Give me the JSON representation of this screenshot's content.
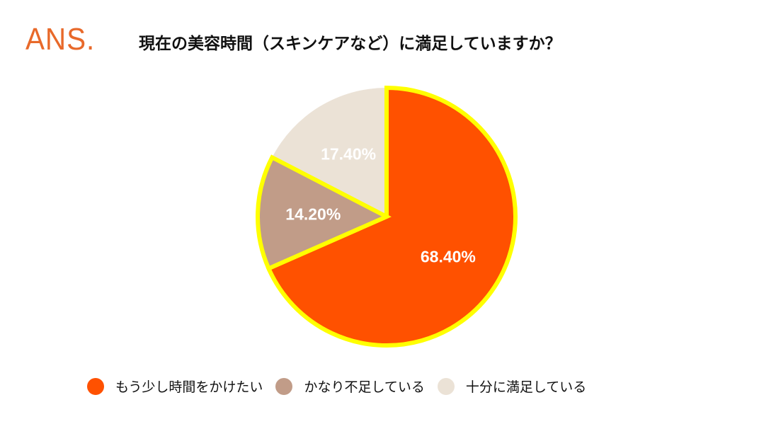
{
  "logo": {
    "text": "ANS."
  },
  "chart_data": {
    "type": "pie",
    "title": "現在の美容時間（スキンケアなど）に満足していますか？",
    "slices": [
      {
        "label": "もう少し時間をかけたい",
        "value": 68.4,
        "display": "68.40%",
        "color": "#ff5100",
        "highlighted": true
      },
      {
        "label": "かなり不足している",
        "value": 14.2,
        "display": "14.20%",
        "color": "#c19c88",
        "highlighted": true
      },
      {
        "label": "十分に満足している",
        "value": 17.4,
        "display": "17.40%",
        "color": "#ebe2d6",
        "highlighted": false
      }
    ],
    "start_direction": "12 o'clock, clockwise",
    "highlight_color": "#ffff00",
    "label_color": "#ffffff",
    "legend_position": "bottom"
  }
}
